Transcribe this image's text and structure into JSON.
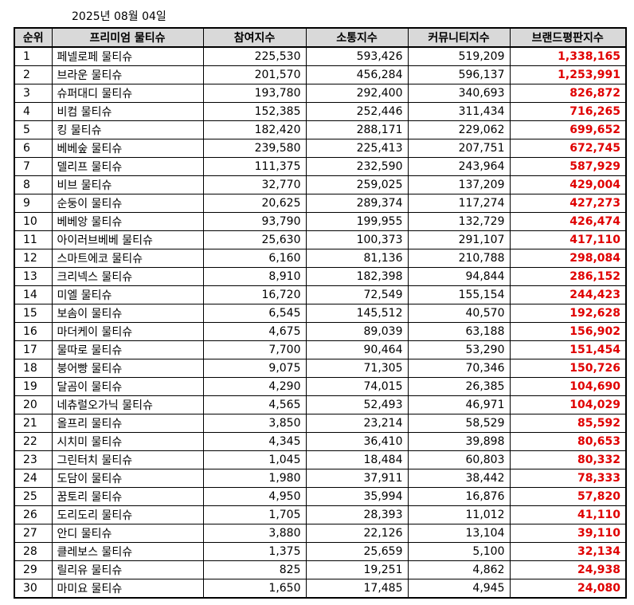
{
  "date": "2025년 08월 04일",
  "headers": [
    "순위",
    "프리미엄 물티슈",
    "참여지수",
    "소통지수",
    "커뮤니티지수",
    "브랜드평판지수"
  ],
  "rows": [
    {
      "rank": "1",
      "name": "페넬로페 물티슈",
      "participation": "225,530",
      "communication": "593,426",
      "community": "519,209",
      "reputation": "1,338,165"
    },
    {
      "rank": "2",
      "name": "브라운 물티슈",
      "participation": "201,570",
      "communication": "456,284",
      "community": "596,137",
      "reputation": "1,253,991"
    },
    {
      "rank": "3",
      "name": "슈퍼대디 물티슈",
      "participation": "193,780",
      "communication": "292,400",
      "community": "340,693",
      "reputation": "826,872"
    },
    {
      "rank": "4",
      "name": "비컴 물티슈",
      "participation": "152,385",
      "communication": "252,446",
      "community": "311,434",
      "reputation": "716,265"
    },
    {
      "rank": "5",
      "name": "킹 물티슈",
      "participation": "182,420",
      "communication": "288,171",
      "community": "229,062",
      "reputation": "699,652"
    },
    {
      "rank": "6",
      "name": "베베숲 물티슈",
      "participation": "239,580",
      "communication": "225,413",
      "community": "207,751",
      "reputation": "672,745"
    },
    {
      "rank": "7",
      "name": "델리프 물티슈",
      "participation": "111,375",
      "communication": "232,590",
      "community": "243,964",
      "reputation": "587,929"
    },
    {
      "rank": "8",
      "name": "비브 물티슈",
      "participation": "32,770",
      "communication": "259,025",
      "community": "137,209",
      "reputation": "429,004"
    },
    {
      "rank": "9",
      "name": "순둥이 물티슈",
      "participation": "20,625",
      "communication": "289,374",
      "community": "117,274",
      "reputation": "427,273"
    },
    {
      "rank": "10",
      "name": "베베앙 물티슈",
      "participation": "93,790",
      "communication": "199,955",
      "community": "132,729",
      "reputation": "426,474"
    },
    {
      "rank": "11",
      "name": "아이러브베베 물티슈",
      "participation": "25,630",
      "communication": "100,373",
      "community": "291,107",
      "reputation": "417,110"
    },
    {
      "rank": "12",
      "name": "스마트에코 물티슈",
      "participation": "6,160",
      "communication": "81,136",
      "community": "210,788",
      "reputation": "298,084"
    },
    {
      "rank": "13",
      "name": "크리넥스 물티슈",
      "participation": "8,910",
      "communication": "182,398",
      "community": "94,844",
      "reputation": "286,152"
    },
    {
      "rank": "14",
      "name": "미엘 물티슈",
      "participation": "16,720",
      "communication": "72,549",
      "community": "155,154",
      "reputation": "244,423"
    },
    {
      "rank": "15",
      "name": "보솜이 물티슈",
      "participation": "6,545",
      "communication": "145,512",
      "community": "40,570",
      "reputation": "192,628"
    },
    {
      "rank": "16",
      "name": "마더케이 물티슈",
      "participation": "4,675",
      "communication": "89,039",
      "community": "63,188",
      "reputation": "156,902"
    },
    {
      "rank": "17",
      "name": "물따로 물티슈",
      "participation": "7,700",
      "communication": "90,464",
      "community": "53,290",
      "reputation": "151,454"
    },
    {
      "rank": "18",
      "name": "붕어빵 물티슈",
      "participation": "9,075",
      "communication": "71,305",
      "community": "70,346",
      "reputation": "150,726"
    },
    {
      "rank": "19",
      "name": "달곰이 물티슈",
      "participation": "4,290",
      "communication": "74,015",
      "community": "26,385",
      "reputation": "104,690"
    },
    {
      "rank": "20",
      "name": "네츄럴오가닉 물티슈",
      "participation": "4,565",
      "communication": "52,493",
      "community": "46,971",
      "reputation": "104,029"
    },
    {
      "rank": "21",
      "name": "올프리 물티슈",
      "participation": "3,850",
      "communication": "23,214",
      "community": "58,529",
      "reputation": "85,592"
    },
    {
      "rank": "22",
      "name": "시치미 물티슈",
      "participation": "4,345",
      "communication": "36,410",
      "community": "39,898",
      "reputation": "80,653"
    },
    {
      "rank": "23",
      "name": "그린터치 물티슈",
      "participation": "1,045",
      "communication": "18,484",
      "community": "60,803",
      "reputation": "80,332"
    },
    {
      "rank": "24",
      "name": "도담이 물티슈",
      "participation": "1,980",
      "communication": "37,911",
      "community": "38,442",
      "reputation": "78,333"
    },
    {
      "rank": "25",
      "name": "꿈토리 물티슈",
      "participation": "4,950",
      "communication": "35,994",
      "community": "16,876",
      "reputation": "57,820"
    },
    {
      "rank": "26",
      "name": "도리도리 물티슈",
      "participation": "1,705",
      "communication": "28,393",
      "community": "11,012",
      "reputation": "41,110"
    },
    {
      "rank": "27",
      "name": "안디 물티슈",
      "participation": "3,880",
      "communication": "22,126",
      "community": "13,104",
      "reputation": "39,110"
    },
    {
      "rank": "28",
      "name": "클레보스 물티슈",
      "participation": "1,375",
      "communication": "25,659",
      "community": "5,100",
      "reputation": "32,134"
    },
    {
      "rank": "29",
      "name": "릴리유 물티슈",
      "participation": "825",
      "communication": "19,251",
      "community": "4,862",
      "reputation": "24,938"
    },
    {
      "rank": "30",
      "name": "마미요 물티슈",
      "participation": "1,650",
      "communication": "17,485",
      "community": "4,945",
      "reputation": "24,080"
    }
  ],
  "colors": {
    "header_bg": "#d9d9d9",
    "reputation_text": "#e00000"
  }
}
